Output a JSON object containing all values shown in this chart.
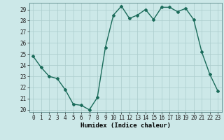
{
  "x": [
    0,
    1,
    2,
    3,
    4,
    5,
    6,
    7,
    8,
    9,
    10,
    11,
    12,
    13,
    14,
    15,
    16,
    17,
    18,
    19,
    20,
    21,
    22,
    23
  ],
  "y": [
    24.8,
    23.8,
    23.0,
    22.8,
    21.8,
    20.5,
    20.4,
    20.0,
    21.1,
    25.6,
    28.5,
    29.3,
    28.2,
    28.5,
    29.0,
    28.1,
    29.2,
    29.2,
    28.8,
    29.1,
    28.1,
    25.2,
    23.2,
    21.7
  ],
  "line_color": "#1a6b5a",
  "marker": "D",
  "marker_size": 2,
  "bg_color": "#cce8e8",
  "grid_color": "#aacccc",
  "xlabel": "Humidex (Indice chaleur)",
  "ylim_min": 19.8,
  "ylim_max": 29.6,
  "xlim_min": -0.5,
  "xlim_max": 23.5,
  "yticks": [
    20,
    21,
    22,
    23,
    24,
    25,
    26,
    27,
    28,
    29
  ],
  "xticks": [
    0,
    1,
    2,
    3,
    4,
    5,
    6,
    7,
    8,
    9,
    10,
    11,
    12,
    13,
    14,
    15,
    16,
    17,
    18,
    19,
    20,
    21,
    22,
    23
  ],
  "xlabel_fontsize": 6.5,
  "tick_fontsize": 5.5,
  "linewidth": 1.0
}
